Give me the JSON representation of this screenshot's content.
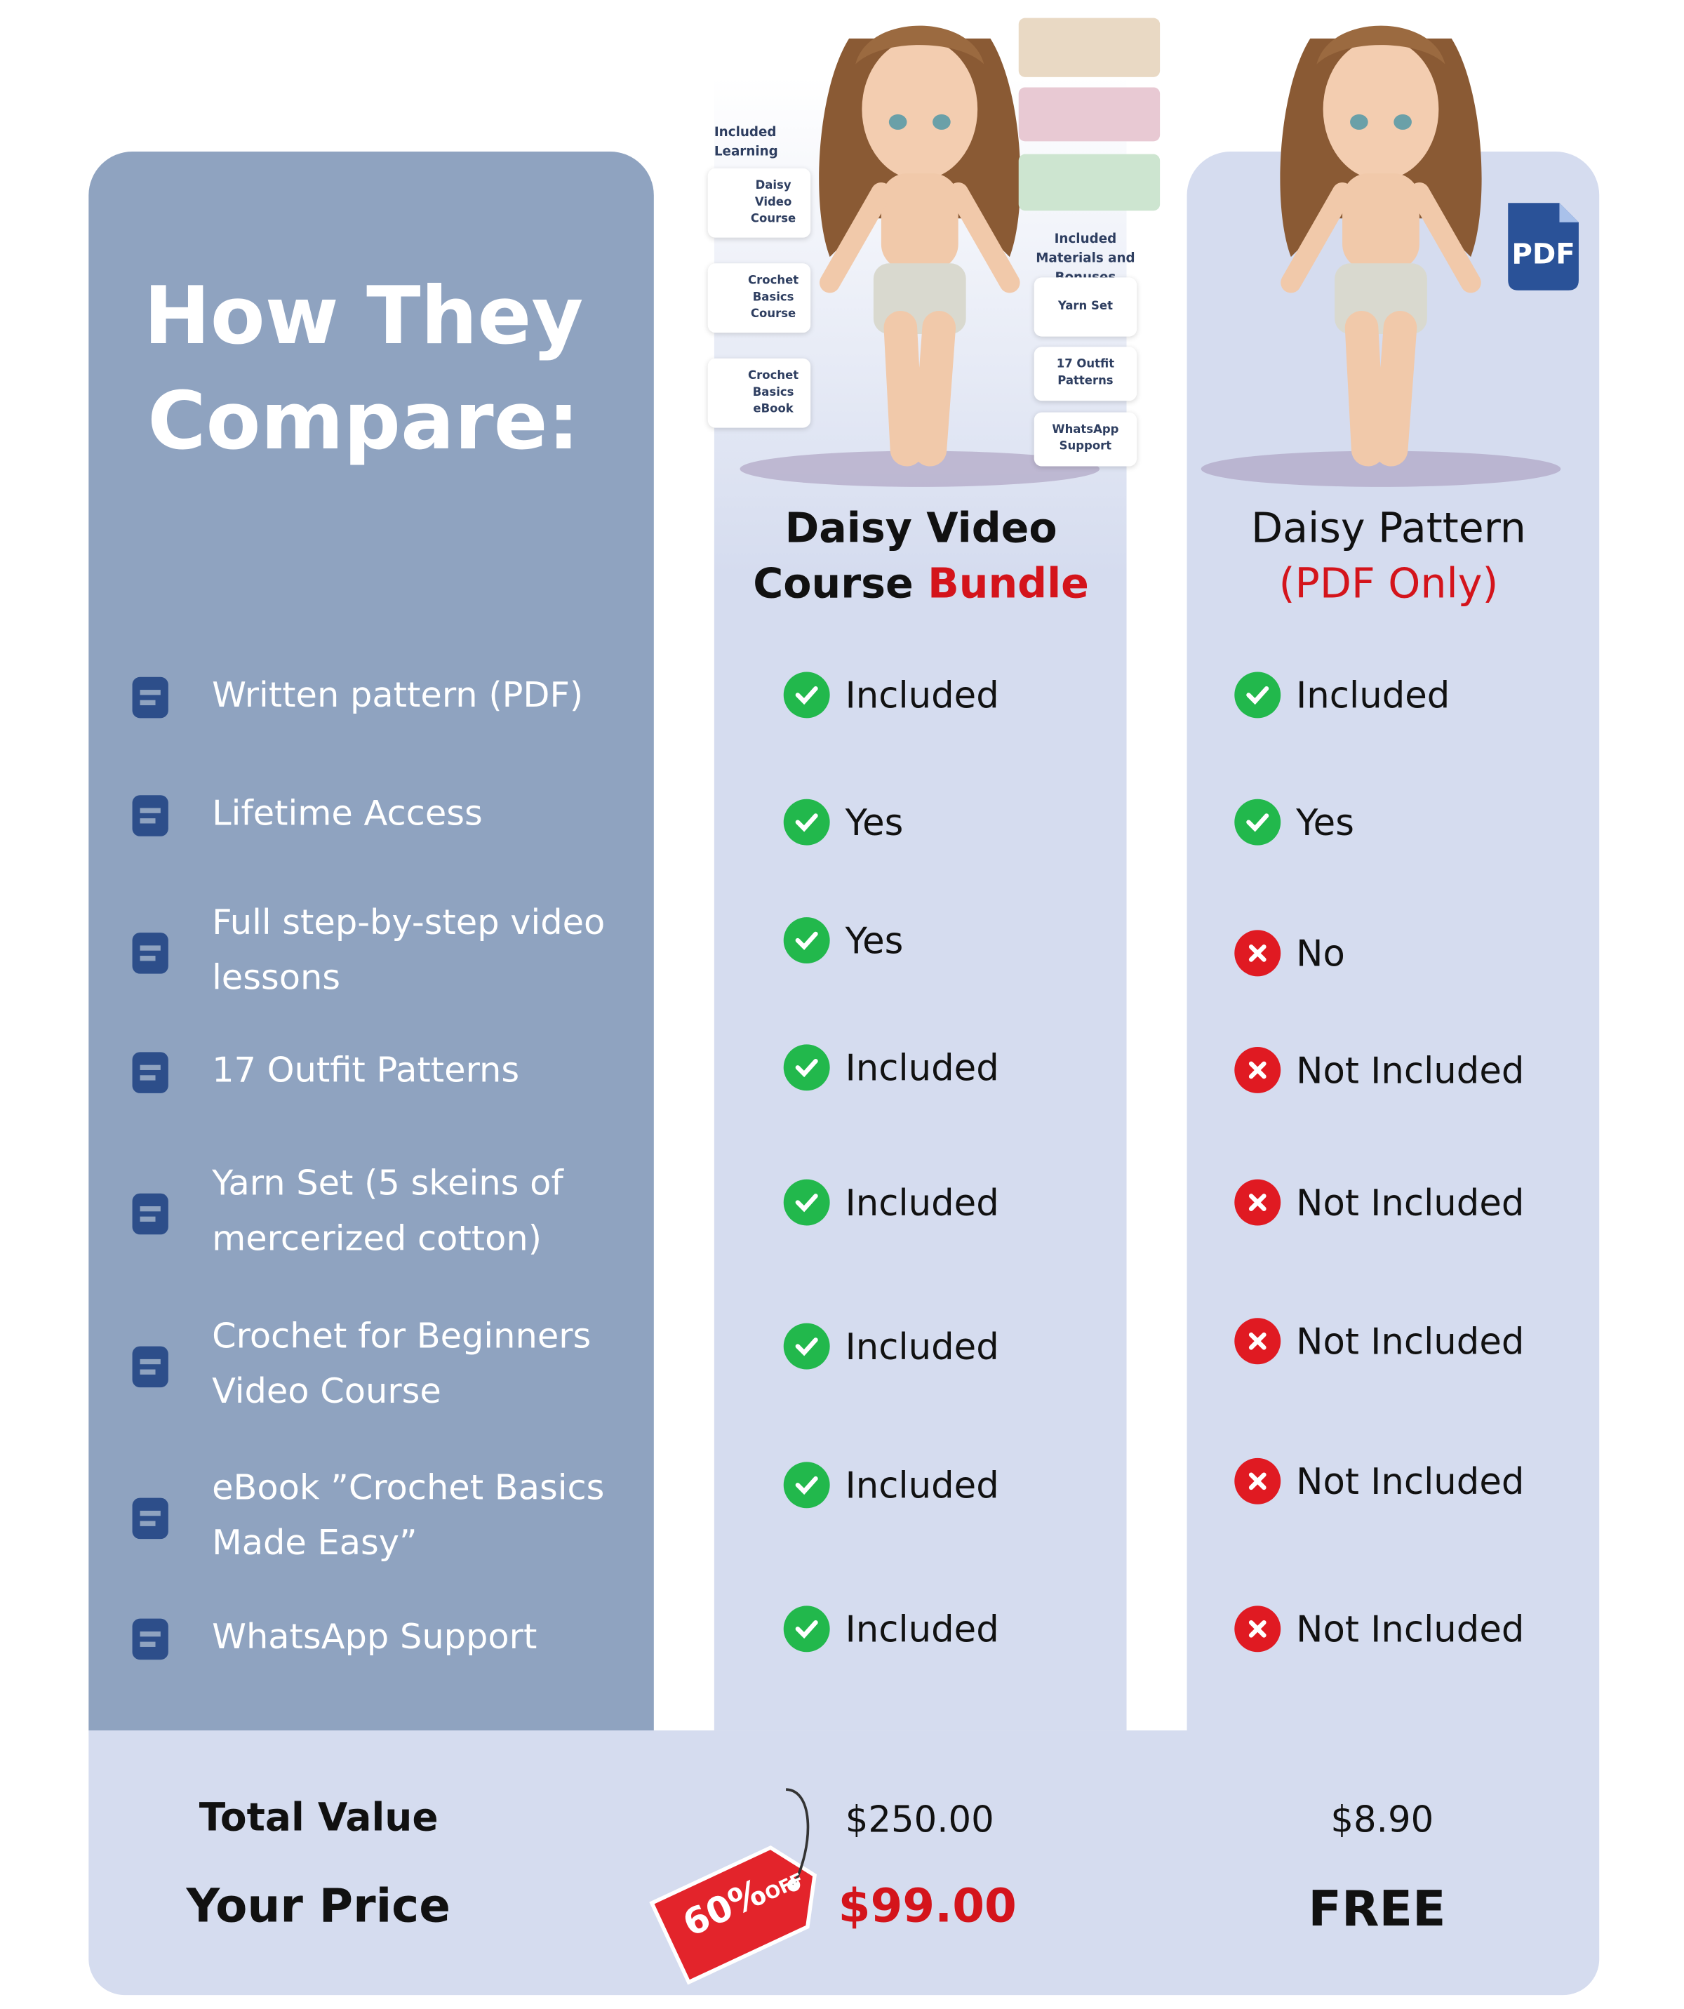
{
  "title": "How They Compare:",
  "columns": [
    {
      "title": "Daisy Video Course",
      "title_accent": "Bundle"
    },
    {
      "title": "Daisy Pattern",
      "title_accent": "(PDF Only)"
    }
  ],
  "features": [
    {
      "label": "Written pattern (PDF)",
      "bundle": "Included",
      "bundle_status": "check",
      "pdf": "Included",
      "pdf_status": "check"
    },
    {
      "label": "Lifetime Access",
      "bundle": "Yes",
      "bundle_status": "check",
      "pdf": "Yes",
      "pdf_status": "check"
    },
    {
      "label": "Full step-by-step video lessons",
      "bundle": "Yes",
      "bundle_status": "check",
      "pdf": "No",
      "pdf_status": "cross"
    },
    {
      "label": "17 Outfit Patterns",
      "bundle": "Included",
      "bundle_status": "check",
      "pdf": "Not Included",
      "pdf_status": "cross"
    },
    {
      "label": "Yarn Set (5 skeins of mercerized cotton)",
      "bundle": "Included",
      "bundle_status": "check",
      "pdf": "Not Included",
      "pdf_status": "cross"
    },
    {
      "label": "Crochet for Beginners Video Course",
      "bundle": "Included",
      "bundle_status": "check",
      "pdf": "Not Included",
      "pdf_status": "cross"
    },
    {
      "label": "eBook ”Crochet Basics Made Easy”",
      "bundle": "Included",
      "bundle_status": "check",
      "pdf": "Not Included",
      "pdf_status": "cross"
    },
    {
      "label": "WhatsApp Support",
      "bundle": "Included",
      "bundle_status": "check",
      "pdf": "Not Included",
      "pdf_status": "cross"
    }
  ],
  "totals": {
    "total_label": "Total Value",
    "price_label": "Your Price",
    "bundle_total": "$250.00",
    "bundle_price": "$99.00",
    "pdf_total": "$8.90",
    "pdf_price": "FREE",
    "discount": "60%",
    "discount_suffix": "OFF"
  },
  "bundle_card": {
    "learning_heading": "Included Learning",
    "learning": [
      "Daisy Video Course",
      "Crochet Basics Course",
      "Crochet Basics eBook"
    ],
    "bonus_heading": "Included Materials and Bonuses",
    "bonuses": [
      "Yarn Set",
      "17 Outfit Patterns",
      "WhatsApp Support"
    ]
  },
  "pdf_badge": "PDF"
}
